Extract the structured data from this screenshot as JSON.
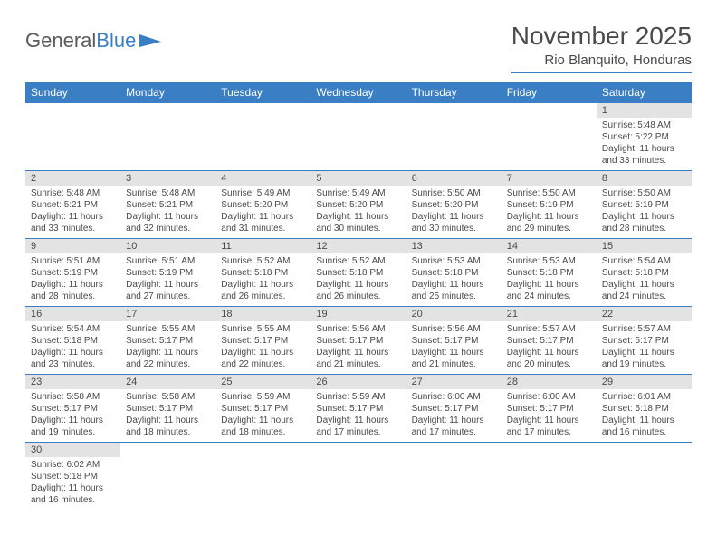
{
  "logo": {
    "text1": "General",
    "text2": "Blue"
  },
  "title": "November 2025",
  "location": "Rio Blanquito, Honduras",
  "styling": {
    "header_bg": "#3a7fc4",
    "header_fg": "#ffffff",
    "daynum_bg": "#e3e3e3",
    "border_color": "#3a7fc4",
    "text_color": "#4a4a4a",
    "title_fontsize": 28,
    "location_fontsize": 15,
    "dayheader_fontsize": 12,
    "daynum_fontsize": 11,
    "body_fontsize": 10
  },
  "day_headers": [
    "Sunday",
    "Monday",
    "Tuesday",
    "Wednesday",
    "Thursday",
    "Friday",
    "Saturday"
  ],
  "weeks": [
    [
      {
        "n": "",
        "lines": []
      },
      {
        "n": "",
        "lines": []
      },
      {
        "n": "",
        "lines": []
      },
      {
        "n": "",
        "lines": []
      },
      {
        "n": "",
        "lines": []
      },
      {
        "n": "",
        "lines": []
      },
      {
        "n": "1",
        "lines": [
          "Sunrise: 5:48 AM",
          "Sunset: 5:22 PM",
          "Daylight: 11 hours",
          "and 33 minutes."
        ]
      }
    ],
    [
      {
        "n": "2",
        "lines": [
          "Sunrise: 5:48 AM",
          "Sunset: 5:21 PM",
          "Daylight: 11 hours",
          "and 33 minutes."
        ]
      },
      {
        "n": "3",
        "lines": [
          "Sunrise: 5:48 AM",
          "Sunset: 5:21 PM",
          "Daylight: 11 hours",
          "and 32 minutes."
        ]
      },
      {
        "n": "4",
        "lines": [
          "Sunrise: 5:49 AM",
          "Sunset: 5:20 PM",
          "Daylight: 11 hours",
          "and 31 minutes."
        ]
      },
      {
        "n": "5",
        "lines": [
          "Sunrise: 5:49 AM",
          "Sunset: 5:20 PM",
          "Daylight: 11 hours",
          "and 30 minutes."
        ]
      },
      {
        "n": "6",
        "lines": [
          "Sunrise: 5:50 AM",
          "Sunset: 5:20 PM",
          "Daylight: 11 hours",
          "and 30 minutes."
        ]
      },
      {
        "n": "7",
        "lines": [
          "Sunrise: 5:50 AM",
          "Sunset: 5:19 PM",
          "Daylight: 11 hours",
          "and 29 minutes."
        ]
      },
      {
        "n": "8",
        "lines": [
          "Sunrise: 5:50 AM",
          "Sunset: 5:19 PM",
          "Daylight: 11 hours",
          "and 28 minutes."
        ]
      }
    ],
    [
      {
        "n": "9",
        "lines": [
          "Sunrise: 5:51 AM",
          "Sunset: 5:19 PM",
          "Daylight: 11 hours",
          "and 28 minutes."
        ]
      },
      {
        "n": "10",
        "lines": [
          "Sunrise: 5:51 AM",
          "Sunset: 5:19 PM",
          "Daylight: 11 hours",
          "and 27 minutes."
        ]
      },
      {
        "n": "11",
        "lines": [
          "Sunrise: 5:52 AM",
          "Sunset: 5:18 PM",
          "Daylight: 11 hours",
          "and 26 minutes."
        ]
      },
      {
        "n": "12",
        "lines": [
          "Sunrise: 5:52 AM",
          "Sunset: 5:18 PM",
          "Daylight: 11 hours",
          "and 26 minutes."
        ]
      },
      {
        "n": "13",
        "lines": [
          "Sunrise: 5:53 AM",
          "Sunset: 5:18 PM",
          "Daylight: 11 hours",
          "and 25 minutes."
        ]
      },
      {
        "n": "14",
        "lines": [
          "Sunrise: 5:53 AM",
          "Sunset: 5:18 PM",
          "Daylight: 11 hours",
          "and 24 minutes."
        ]
      },
      {
        "n": "15",
        "lines": [
          "Sunrise: 5:54 AM",
          "Sunset: 5:18 PM",
          "Daylight: 11 hours",
          "and 24 minutes."
        ]
      }
    ],
    [
      {
        "n": "16",
        "lines": [
          "Sunrise: 5:54 AM",
          "Sunset: 5:18 PM",
          "Daylight: 11 hours",
          "and 23 minutes."
        ]
      },
      {
        "n": "17",
        "lines": [
          "Sunrise: 5:55 AM",
          "Sunset: 5:17 PM",
          "Daylight: 11 hours",
          "and 22 minutes."
        ]
      },
      {
        "n": "18",
        "lines": [
          "Sunrise: 5:55 AM",
          "Sunset: 5:17 PM",
          "Daylight: 11 hours",
          "and 22 minutes."
        ]
      },
      {
        "n": "19",
        "lines": [
          "Sunrise: 5:56 AM",
          "Sunset: 5:17 PM",
          "Daylight: 11 hours",
          "and 21 minutes."
        ]
      },
      {
        "n": "20",
        "lines": [
          "Sunrise: 5:56 AM",
          "Sunset: 5:17 PM",
          "Daylight: 11 hours",
          "and 21 minutes."
        ]
      },
      {
        "n": "21",
        "lines": [
          "Sunrise: 5:57 AM",
          "Sunset: 5:17 PM",
          "Daylight: 11 hours",
          "and 20 minutes."
        ]
      },
      {
        "n": "22",
        "lines": [
          "Sunrise: 5:57 AM",
          "Sunset: 5:17 PM",
          "Daylight: 11 hours",
          "and 19 minutes."
        ]
      }
    ],
    [
      {
        "n": "23",
        "lines": [
          "Sunrise: 5:58 AM",
          "Sunset: 5:17 PM",
          "Daylight: 11 hours",
          "and 19 minutes."
        ]
      },
      {
        "n": "24",
        "lines": [
          "Sunrise: 5:58 AM",
          "Sunset: 5:17 PM",
          "Daylight: 11 hours",
          "and 18 minutes."
        ]
      },
      {
        "n": "25",
        "lines": [
          "Sunrise: 5:59 AM",
          "Sunset: 5:17 PM",
          "Daylight: 11 hours",
          "and 18 minutes."
        ]
      },
      {
        "n": "26",
        "lines": [
          "Sunrise: 5:59 AM",
          "Sunset: 5:17 PM",
          "Daylight: 11 hours",
          "and 17 minutes."
        ]
      },
      {
        "n": "27",
        "lines": [
          "Sunrise: 6:00 AM",
          "Sunset: 5:17 PM",
          "Daylight: 11 hours",
          "and 17 minutes."
        ]
      },
      {
        "n": "28",
        "lines": [
          "Sunrise: 6:00 AM",
          "Sunset: 5:17 PM",
          "Daylight: 11 hours",
          "and 17 minutes."
        ]
      },
      {
        "n": "29",
        "lines": [
          "Sunrise: 6:01 AM",
          "Sunset: 5:18 PM",
          "Daylight: 11 hours",
          "and 16 minutes."
        ]
      }
    ],
    [
      {
        "n": "30",
        "lines": [
          "Sunrise: 6:02 AM",
          "Sunset: 5:18 PM",
          "Daylight: 11 hours",
          "and 16 minutes."
        ]
      },
      {
        "n": "",
        "lines": []
      },
      {
        "n": "",
        "lines": []
      },
      {
        "n": "",
        "lines": []
      },
      {
        "n": "",
        "lines": []
      },
      {
        "n": "",
        "lines": []
      },
      {
        "n": "",
        "lines": []
      }
    ]
  ]
}
